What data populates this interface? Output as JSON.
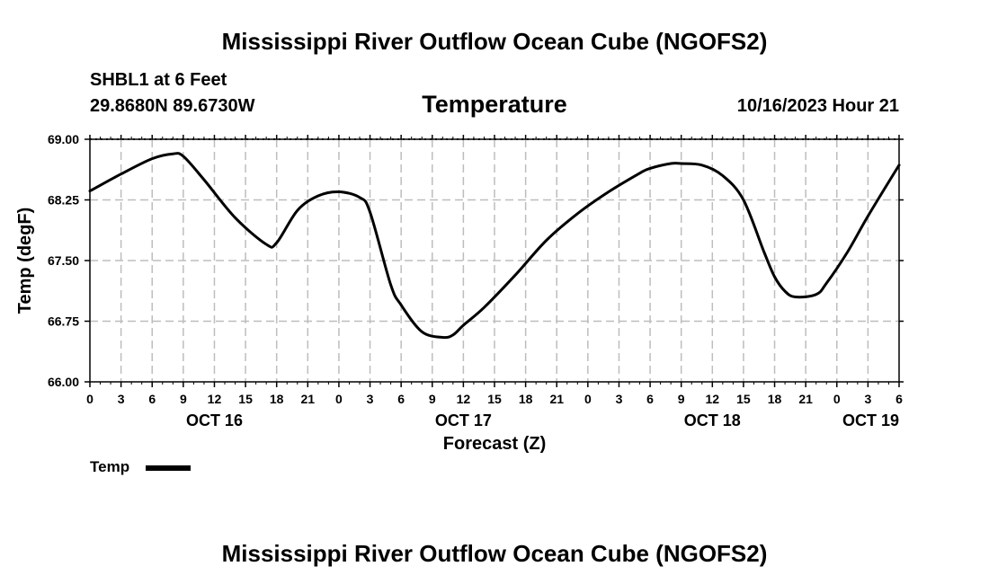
{
  "header": {
    "title": "Mississippi River Outflow Ocean Cube (NGOFS2)",
    "station": "SHBL1 at 6 Feet",
    "coords": "29.8680N  89.6730W",
    "param": "Temperature",
    "datetime": "10/16/2023 Hour 21"
  },
  "footer": {
    "title": "Mississippi River Outflow Ocean Cube (NGOFS2)"
  },
  "legend": {
    "label": "Temp",
    "color": "#000000"
  },
  "chart_data": {
    "type": "line",
    "title": "Temperature",
    "xlabel": "Forecast (Z)",
    "ylabel": "Temp (degF)",
    "xlim": [
      0,
      78
    ],
    "ylim": [
      66.0,
      69.0
    ],
    "grid": true,
    "yticks": [
      "66.00",
      "66.75",
      "67.50",
      "68.25",
      "69.00"
    ],
    "xtick_labels": [
      "0",
      "3",
      "6",
      "9",
      "12",
      "15",
      "18",
      "21",
      "0",
      "3",
      "6",
      "9",
      "12",
      "15",
      "18",
      "21",
      "0",
      "3",
      "6",
      "9",
      "12",
      "15",
      "18",
      "21",
      "0",
      "3",
      "6"
    ],
    "day_labels": [
      {
        "hour": 12,
        "label": "OCT 16"
      },
      {
        "hour": 36,
        "label": "OCT 17"
      },
      {
        "hour": 60,
        "label": "OCT 18"
      },
      {
        "hour": 78,
        "label": "OCT 19"
      }
    ],
    "series": [
      {
        "name": "Temp",
        "x": [
          0,
          3,
          6,
          8,
          9,
          11,
          14,
          17,
          18,
          20,
          22,
          24,
          26,
          27,
          29,
          30,
          32,
          34,
          35,
          36,
          38,
          41,
          44,
          47,
          50,
          53,
          54,
          56,
          57,
          59,
          61,
          63,
          65,
          66,
          67,
          68,
          70,
          71,
          73,
          75,
          78
        ],
        "y": [
          68.36,
          68.57,
          68.76,
          68.82,
          68.79,
          68.5,
          68.03,
          67.7,
          67.72,
          68.12,
          68.3,
          68.35,
          68.28,
          68.1,
          67.2,
          66.95,
          66.62,
          66.55,
          66.58,
          66.7,
          66.92,
          67.32,
          67.75,
          68.08,
          68.35,
          68.58,
          68.64,
          68.7,
          68.7,
          68.68,
          68.55,
          68.25,
          67.6,
          67.3,
          67.12,
          67.05,
          67.08,
          67.22,
          67.6,
          68.05,
          68.68
        ]
      }
    ]
  }
}
